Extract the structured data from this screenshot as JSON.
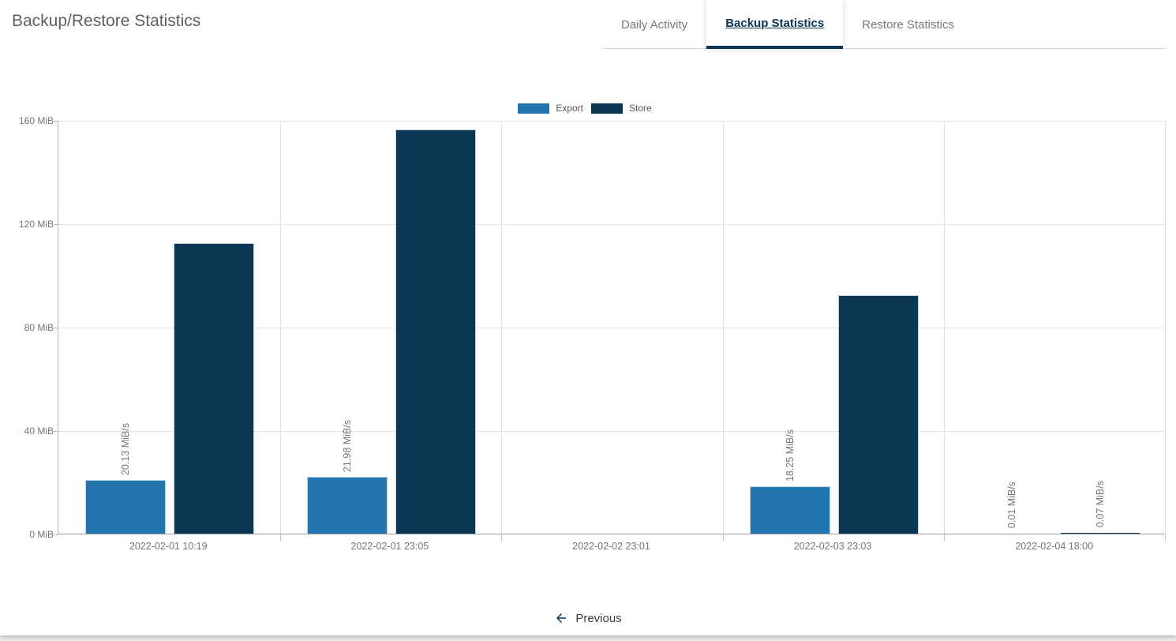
{
  "page": {
    "title": "Backup/Restore Statistics"
  },
  "tabs": [
    {
      "label": "Daily Activity",
      "active": false
    },
    {
      "label": "Backup Statistics",
      "active": true
    },
    {
      "label": "Restore Statistics",
      "active": false
    }
  ],
  "colors": {
    "export": "#2275af",
    "store": "#0a3553",
    "active_tab": "#0a3553",
    "axis_text": "#757575"
  },
  "legend": [
    {
      "label": "Export",
      "color": "#2275af"
    },
    {
      "label": "Store",
      "color": "#0a3553"
    }
  ],
  "chart_data": {
    "type": "bar",
    "title": "",
    "categories": [
      "2022-02-01 10:19",
      "2022-02-01 23:05",
      "2022-02-02 23:01",
      "2022-02-03 23:03",
      "2022-02-04 18:00"
    ],
    "series": [
      {
        "name": "Export",
        "color": "#2275af",
        "values_mib": [
          20.5,
          21.7,
          0,
          18.0,
          0.01
        ],
        "bar_labels": [
          "20.13 MiB/s",
          "21.98 MiB/s",
          "",
          "18.25 MiB/s",
          "0.01 MiB/s"
        ]
      },
      {
        "name": "Store",
        "color": "#0a3553",
        "values_mib": [
          112,
          156,
          0,
          92,
          0.07
        ],
        "bar_labels": [
          "",
          "",
          "",
          "",
          "0.07 MiB/s"
        ]
      }
    ],
    "ylabel_unit": "MiB",
    "ylim": [
      0,
      160
    ],
    "ytick_labels": [
      "0 MiB",
      "40 MiB",
      "80 MiB",
      "120 MiB",
      "160 MiB"
    ],
    "grid": true,
    "legend_position": "top-center"
  },
  "pagination": {
    "previous_label": "Previous"
  }
}
